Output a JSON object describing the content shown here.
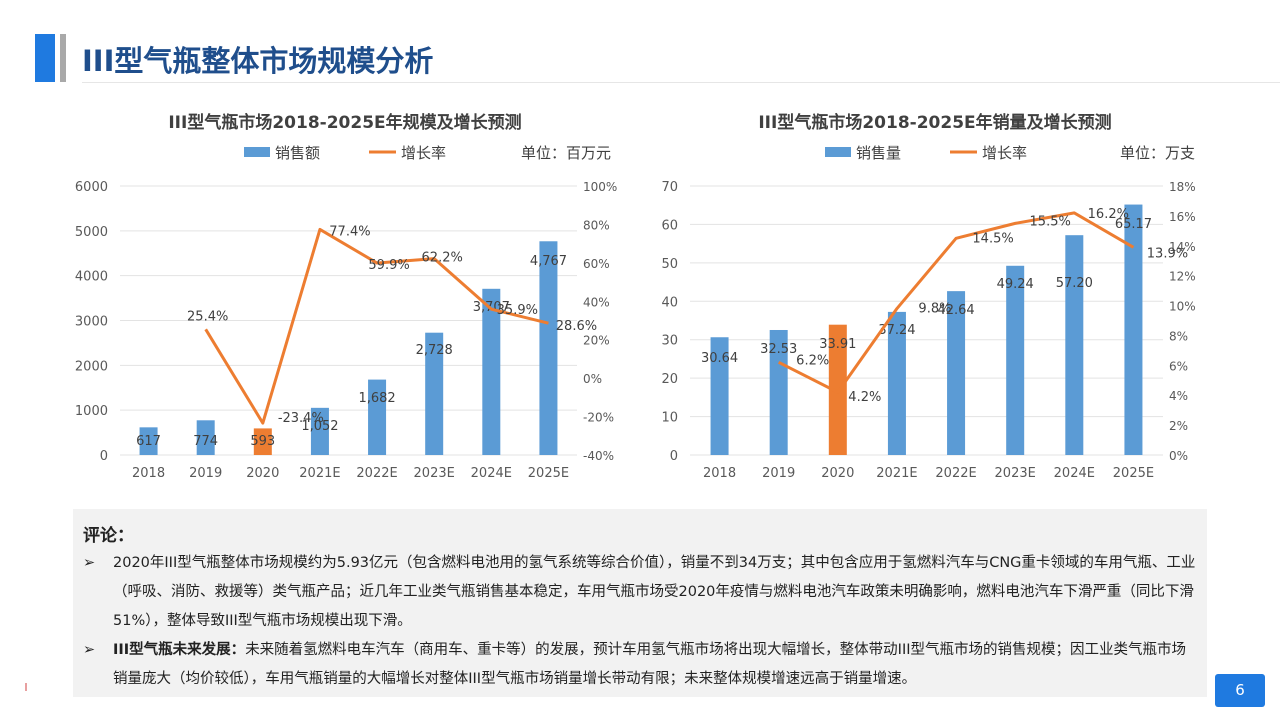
{
  "page": {
    "title": "III型气瓶整体市场规模分析",
    "page_number": "6"
  },
  "colors": {
    "accent": "#1f7ae0",
    "bar": "#5b9bd5",
    "bar_highlight": "#ed7d31",
    "line": "#ed7d31"
  },
  "comments": {
    "title": "评论：",
    "bullet1": "2020年III型气瓶整体市场规模约为5.93亿元（包含燃料电池用的氢气系统等综合价值），销量不到34万支；其中包含应用于氢燃料汽车与CNG重卡领域的车用气瓶、工业（呼吸、消防、救援等）类气瓶产品；近几年工业类气瓶销售基本稳定，车用气瓶市场受2020年疫情与燃料电池汽车政策未明确影响，燃料电池汽车下滑严重（同比下滑51%），整体导致III型气瓶市场规模出现下滑。",
    "bullet2_bold": "III型气瓶未来发展：",
    "bullet2": "未来随着氢燃料电车汽车（商用车、重卡等）的发展，预计车用氢气瓶市场将出现大幅增长，整体带动III型气瓶市场的销售规模；因工业类气瓶市场销量庞大（均价较低），车用气瓶销量的大幅增长对整体III型气瓶市场销量增长带动有限；未来整体规模增速远高于销量增速。"
  },
  "chart_data": [
    {
      "type": "bar",
      "title": "III型气瓶市场2018-2025E年规模及增长预测",
      "unit": "单位：百万元",
      "legend": [
        "销售额",
        "增长率"
      ],
      "categories": [
        "2018",
        "2019",
        "2020",
        "2021E",
        "2022E",
        "2023E",
        "2024E",
        "2025E"
      ],
      "values": [
        617,
        774,
        593,
        1052,
        1682,
        2728,
        3707,
        4767
      ],
      "value_labels": [
        "617",
        "774",
        "593",
        "1,052",
        "1,682",
        "2,728",
        "3,707",
        "4,767"
      ],
      "growth": [
        null,
        25.4,
        -23.4,
        77.4,
        59.9,
        62.2,
        35.9,
        28.6
      ],
      "growth_labels": [
        "",
        "25.4%",
        "-23.4%",
        "77.4%",
        "59.9%",
        "62.2%",
        "35.9%",
        "28.6%"
      ],
      "highlight_index": 2,
      "ylim": [
        0,
        6000
      ],
      "yticks": [
        "0",
        "1000",
        "2000",
        "3000",
        "4000",
        "5000",
        "6000"
      ],
      "y2lim": [
        -40,
        100
      ],
      "y2ticks": [
        "-40%",
        "-20%",
        "0%",
        "20%",
        "40%",
        "60%",
        "80%",
        "100%"
      ]
    },
    {
      "type": "bar",
      "title": "III型气瓶市场2018-2025E年销量及增长预测",
      "unit": "单位：万支",
      "legend": [
        "销售量",
        "增长率"
      ],
      "categories": [
        "2018",
        "2019",
        "2020",
        "2021E",
        "2022E",
        "2023E",
        "2024E",
        "2025E"
      ],
      "values": [
        30.64,
        32.53,
        33.91,
        37.24,
        42.64,
        49.24,
        57.2,
        65.17
      ],
      "value_labels": [
        "30.64",
        "32.53",
        "33.91",
        "37.24",
        "42.64",
        "49.24",
        "57.20",
        "65.17"
      ],
      "growth": [
        null,
        6.2,
        4.2,
        9.8,
        14.5,
        15.5,
        16.2,
        13.9
      ],
      "growth_labels": [
        "",
        "6.2%",
        "4.2%",
        "9.8%",
        "14.5%",
        "15.5%",
        "16.2%",
        "13.9%"
      ],
      "highlight_index": 2,
      "ylim": [
        0,
        70
      ],
      "yticks": [
        "0",
        "10",
        "20",
        "30",
        "40",
        "50",
        "60",
        "70"
      ],
      "y2lim": [
        0,
        18
      ],
      "y2ticks": [
        "0%",
        "2%",
        "4%",
        "6%",
        "8%",
        "10%",
        "12%",
        "14%",
        "16%",
        "18%"
      ]
    }
  ]
}
